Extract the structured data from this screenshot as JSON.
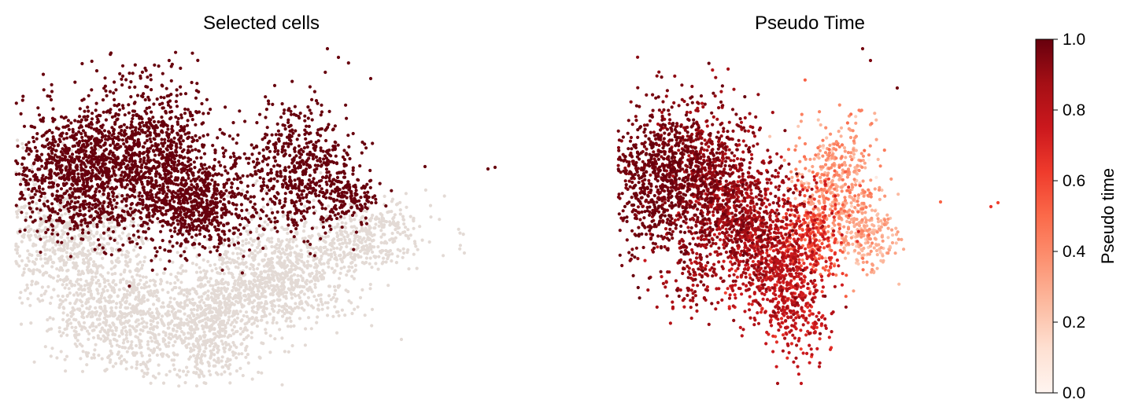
{
  "chart_data": [
    {
      "type": "scatter",
      "title": "Selected cells",
      "xlabel": "",
      "ylabel": "",
      "grid": false,
      "colors": {
        "selected": "#67000d",
        "unselected": "#e3dad5"
      }
    },
    {
      "type": "scatter",
      "title": "Pseudo Time",
      "xlabel": "",
      "ylabel": "",
      "grid": false,
      "colorbar": {
        "label": "Pseudo time",
        "range": [
          0,
          1
        ],
        "ticks": [
          "0.0",
          "0.2",
          "0.4",
          "0.6",
          "0.8",
          "1.0"
        ],
        "colormap": "Reds",
        "colors": [
          "#fff5f0",
          "#fcbba1",
          "#fc9272",
          "#fb6a4a",
          "#ef3b2c",
          "#cb181d",
          "#a50f15",
          "#67000d"
        ]
      }
    }
  ]
}
